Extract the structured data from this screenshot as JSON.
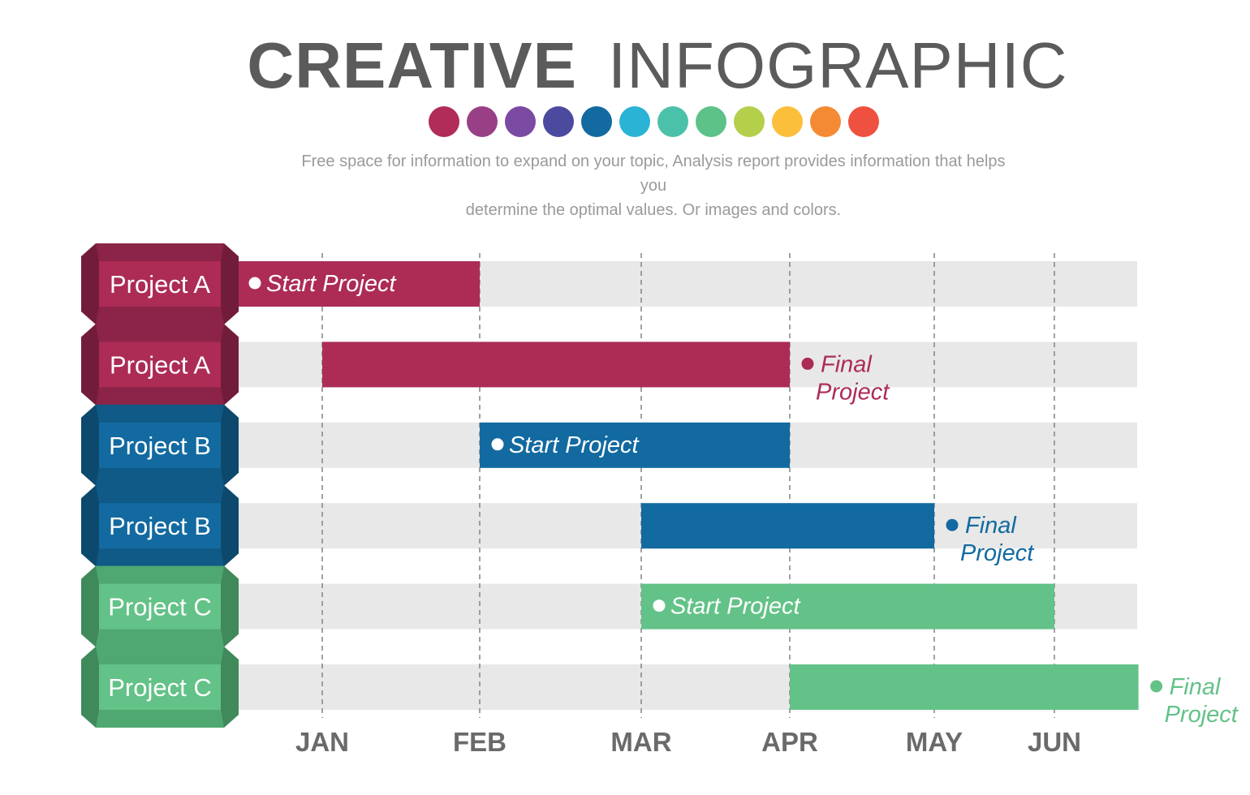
{
  "header": {
    "title_bold": "CREATIVE",
    "title_light": "INFOGRAPHIC",
    "subtitle_line1": "Free space for information to expand on your topic, Analysis report provides information that helps you",
    "subtitle_line2": "determine the optimal values. Or images and colors.",
    "palette": [
      "#b12c58",
      "#993f86",
      "#7b4aa3",
      "#4b4a9f",
      "#126aa0",
      "#2bb3d6",
      "#4cc1aa",
      "#5cc287",
      "#b4cf4a",
      "#fbbf3b",
      "#f58a34",
      "#ee5140"
    ]
  },
  "chart_data": {
    "type": "gantt",
    "categories": [
      "JAN",
      "FEB",
      "MAR",
      "APR",
      "MAY",
      "JUN"
    ],
    "tasks": [
      {
        "label": "Project A",
        "start": -0.55,
        "end": 1.0,
        "color": "#ac2c56",
        "tab_color": "#8c2348",
        "annotation": "Start  Project",
        "annotation_position": "inside",
        "annotation_color": "#ffffff"
      },
      {
        "label": "Project A",
        "start": 0.0,
        "end": 3.0,
        "color": "#ac2c56",
        "tab_color": "#8c2348",
        "annotation": "Final Project",
        "annotation_position": "after",
        "annotation_color": "#ac2c56"
      },
      {
        "label": "Project B",
        "start": 1.0,
        "end": 3.0,
        "color": "#126aa0",
        "tab_color": "#0f5a86",
        "annotation": "Start  Project",
        "annotation_position": "inside",
        "annotation_color": "#ffffff"
      },
      {
        "label": "Project B",
        "start": 2.0,
        "end": 4.0,
        "color": "#126aa0",
        "tab_color": "#0f5a86",
        "annotation": "Final Project",
        "annotation_position": "after",
        "annotation_color": "#126aa0"
      },
      {
        "label": "Project C",
        "start": 2.0,
        "end": 5.0,
        "color": "#63c287",
        "tab_color": "#4fa870",
        "annotation": "Start  Project",
        "annotation_position": "inside",
        "annotation_color": "#ffffff"
      },
      {
        "label": "Project C",
        "start": 3.0,
        "end": 5.7,
        "color": "#63c287",
        "tab_color": "#4fa870",
        "annotation": "Final Project",
        "annotation_position": "after",
        "annotation_color": "#63c287"
      }
    ],
    "axis_label_color": "#6a6a6a",
    "track_color": "#e8e8e8",
    "grid_style": "dashed"
  }
}
